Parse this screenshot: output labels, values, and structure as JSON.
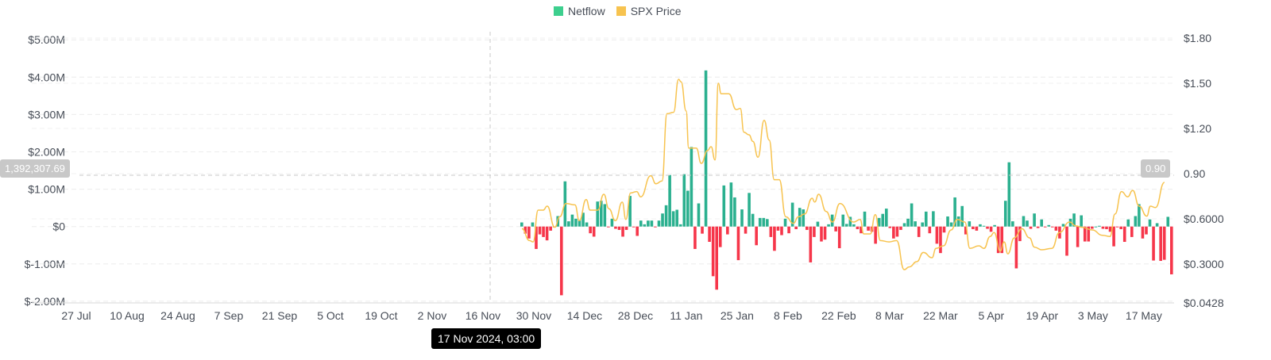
{
  "chart_data": {
    "type": "bar",
    "legend": [
      {
        "name": "Netflow",
        "color": "#2bb08f"
      },
      {
        "name": "SPX Price",
        "color": "#f7c34f"
      }
    ],
    "legend_position": "top-center",
    "grid": true,
    "x_tick_labels": [
      "27 Jul",
      "10 Aug",
      "24 Aug",
      "7 Sep",
      "21 Sep",
      "5 Oct",
      "19 Oct",
      "2 Nov",
      "16 Nov",
      "30 Nov",
      "14 Dec",
      "28 Dec",
      "11 Jan",
      "25 Jan",
      "8 Feb",
      "22 Feb",
      "8 Mar",
      "22 Mar",
      "5 Apr",
      "19 Apr",
      "3 May",
      "17 May"
    ],
    "x_range_days_from_27_Jul": [
      0,
      304
    ],
    "bars_start_day": 122,
    "left_axis": {
      "label_values": [
        "$5.00M",
        "$4.00M",
        "$3.00M",
        "$2.00M",
        "$1.00M",
        "$0",
        "$-1.00M",
        "$-2.00M"
      ],
      "ylim": [
        -2,
        5
      ],
      "unit": "M USD"
    },
    "right_axis": {
      "label_values": [
        "$1.80",
        "$1.50",
        "$1.20",
        "0.90",
        "$0.6000",
        "$0.3000",
        "$0.0428"
      ],
      "ylim": [
        0.0428,
        1.8
      ]
    },
    "netflow_series": {
      "name": "Netflow",
      "positive_color": "#2bb08f",
      "negative_color": "#f6364a",
      "values_M": [
        0.11,
        -0.19,
        -0.32,
        0.11,
        -0.6,
        -0.21,
        -0.28,
        -0.37,
        -0.11,
        -0.02,
        0.28,
        -1.84,
        1.21,
        0.14,
        0.32,
        0.21,
        0.18,
        0.37,
        0.11,
        -0.18,
        -0.27,
        0.67,
        0.69,
        0.6,
        -0.02,
        0.21,
        -0.06,
        -0.09,
        -0.27,
        -0.09,
        0.82,
        -0.02,
        -0.25,
        0.16,
        0.06,
        0.16,
        0.16,
        -0.01,
        0.16,
        0.35,
        0.57,
        1.38,
        0.41,
        0.45,
        0.06,
        1.4,
        0.96,
        2.13,
        -0.6,
        0.62,
        -0.19,
        4.18,
        -0.41,
        -1.33,
        -1.69,
        -0.55,
        1.1,
        -0.21,
        1.18,
        0.78,
        -0.9,
        0.46,
        -0.19,
        0.9,
        0.34,
        -0.5,
        0.23,
        0.23,
        0.2,
        -0.28,
        -0.65,
        -0.11,
        -0.23,
        0.21,
        -0.18,
        0.64,
        -0.07,
        0.5,
        0.46,
        -0.09,
        -0.96,
        -0.28,
        0.13,
        -0.4,
        -0.35,
        0.06,
        0.32,
        -0.13,
        -0.58,
        0.32,
        0.07,
        0.26,
        0.06,
        -0.07,
        -0.18,
        0.4,
        -0.11,
        -0.14,
        -0.46,
        0.23,
        0.34,
        0.48,
        -0.04,
        -0.32,
        -0.27,
        -0.09,
        0.09,
        0.21,
        0.62,
        0.14,
        -0.28,
        0.11,
        0.4,
        -0.18,
        0.41,
        -0.46,
        -0.71,
        -0.16,
        0.27,
        0.11,
        0.78,
        0.27,
        0.55,
        -0.21,
        0.14,
        -0.07,
        -0.11,
        0.06,
        0.02,
        -0.06,
        -0.14,
        0.04,
        -0.71,
        -0.71,
        0.69,
        1.72,
        0.14,
        -1.12,
        -0.39,
        0.28,
        0.16,
        -0.06,
        0.35,
        -0.04,
        0.19,
        -0.02,
        0.04,
        -0.02,
        -0.11,
        -0.32,
        0.07,
        -0.78,
        0.21,
        0.35,
        -0.55,
        0.3,
        -0.4,
        -0.4,
        -0.06,
        0,
        0.02,
        -0.06,
        -0.07,
        -0.14,
        -0.53,
        -0.02,
        -0.07,
        -0.41,
        0.19,
        -0.28,
        0.28,
        0.6,
        -0.32,
        -0.21,
        0.19,
        -0.91,
        0.09,
        -0.92,
        -0.89,
        0.26,
        -1.28
      ]
    },
    "price_series": {
      "name": "SPX Price",
      "points_day_offset_price": [
        [
          0,
          0.535
        ],
        [
          2.1,
          0.456
        ],
        [
          3.1,
          0.447
        ],
        [
          4.5,
          0.658
        ],
        [
          5.9,
          0.658
        ],
        [
          7,
          0.684
        ],
        [
          9.1,
          0.544
        ],
        [
          10.5,
          0.614
        ],
        [
          12.2,
          0.702
        ],
        [
          14.7,
          0.693
        ],
        [
          15.9,
          0.588
        ],
        [
          17.8,
          0.728
        ],
        [
          18.9,
          0.658
        ],
        [
          21,
          0.658
        ],
        [
          22.7,
          0.763
        ],
        [
          24.1,
          0.667
        ],
        [
          25.9,
          0.588
        ],
        [
          27.8,
          0.711
        ],
        [
          28.8,
          0.596
        ],
        [
          30.1,
          0.772
        ],
        [
          31.8,
          0.781
        ],
        [
          32.9,
          0.746
        ],
        [
          35.7,
          0.886
        ],
        [
          37.1,
          0.833
        ],
        [
          38.8,
          0.851
        ],
        [
          40.2,
          1.298
        ],
        [
          42,
          1.307
        ],
        [
          43.4,
          1.526
        ],
        [
          44.1,
          1.509
        ],
        [
          45.5,
          1.316
        ],
        [
          46.2,
          1.07
        ],
        [
          48.3,
          1.07
        ],
        [
          49.7,
          0.968
        ],
        [
          51.4,
          1.053
        ],
        [
          52.4,
          1.079
        ],
        [
          53.5,
          0.991
        ],
        [
          54.4,
          1.5
        ],
        [
          55.2,
          1.43
        ],
        [
          57.3,
          1.43
        ],
        [
          59.4,
          1.325
        ],
        [
          60.5,
          1.333
        ],
        [
          61.5,
          1.175
        ],
        [
          62.9,
          1.158
        ],
        [
          64,
          1.114
        ],
        [
          65.4,
          1.009
        ],
        [
          67.1,
          1.254
        ],
        [
          68.5,
          1.123
        ],
        [
          69.9,
          0.86
        ],
        [
          71.3,
          0.86
        ],
        [
          73.1,
          0.614
        ],
        [
          75.2,
          0.57
        ],
        [
          76.6,
          0.614
        ],
        [
          78.3,
          0.632
        ],
        [
          80.4,
          0.737
        ],
        [
          81.1,
          0.711
        ],
        [
          82.2,
          0.763
        ],
        [
          84.3,
          0.649
        ],
        [
          86,
          0.579
        ],
        [
          88.1,
          0.702
        ],
        [
          91.9,
          0.579
        ],
        [
          93.7,
          0.596
        ],
        [
          94.7,
          0.5
        ],
        [
          96.5,
          0.5
        ],
        [
          97.9,
          0.628
        ],
        [
          99.3,
          0.456
        ],
        [
          101.7,
          0.447
        ],
        [
          103.8,
          0.456
        ],
        [
          105.9,
          0.263
        ],
        [
          107.3,
          0.281
        ],
        [
          109.4,
          0.316
        ],
        [
          111.2,
          0.377
        ],
        [
          113.6,
          0.342
        ],
        [
          114.7,
          0.404
        ],
        [
          116.8,
          0.421
        ],
        [
          118.9,
          0.526
        ],
        [
          120.6,
          0.596
        ],
        [
          122.7,
          0.579
        ],
        [
          124.1,
          0.404
        ],
        [
          126.6,
          0.421
        ],
        [
          128,
          0.404
        ],
        [
          129.7,
          0.483
        ],
        [
          130.8,
          0.509
        ],
        [
          132.5,
          0.386
        ],
        [
          133.6,
          0.447
        ],
        [
          134.6,
          0.368
        ],
        [
          136.4,
          0.474
        ],
        [
          138.5,
          0.535
        ],
        [
          140.6,
          0.474
        ],
        [
          142,
          0.412
        ],
        [
          144,
          0.395
        ],
        [
          146.8,
          0.404
        ],
        [
          148.9,
          0.509
        ],
        [
          151.7,
          0.579
        ],
        [
          153.5,
          0.553
        ],
        [
          155.2,
          0.544
        ],
        [
          158,
          0.526
        ],
        [
          160.8,
          0.491
        ],
        [
          162.9,
          0.483
        ],
        [
          164.3,
          0.632
        ],
        [
          166.1,
          0.781
        ],
        [
          167.8,
          0.746
        ],
        [
          169.2,
          0.789
        ],
        [
          171,
          0.684
        ],
        [
          173.1,
          0.618
        ],
        [
          174.1,
          0.684
        ],
        [
          175.5,
          0.675
        ],
        [
          178,
          0.842
        ]
      ]
    },
    "crosshair": {
      "date_label": "17 Nov 2024, 03:00",
      "left_value": "1,392,307.69",
      "right_value": "0.90"
    }
  }
}
